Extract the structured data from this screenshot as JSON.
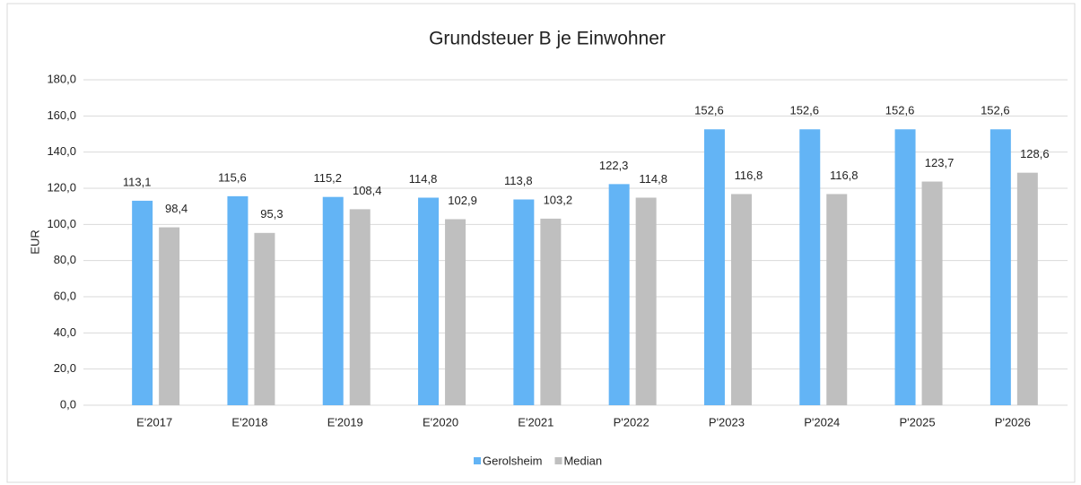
{
  "chart_data": {
    "type": "bar",
    "title": "Grundsteuer B je Einwohner",
    "y_label": "EUR",
    "categories": [
      "E'2017",
      "E'2018",
      "E'2019",
      "E'2020",
      "E'2021",
      "P'2022",
      "P'2023",
      "P'2024",
      "P'2025",
      "P'2026"
    ],
    "series": [
      {
        "name": "Gerolsheim",
        "color": "#63b4f5",
        "values": [
          113.1,
          115.6,
          115.2,
          114.8,
          113.8,
          122.3,
          152.6,
          152.6,
          152.6,
          152.6
        ],
        "value_labels": [
          "113,1",
          "115,6",
          "115,2",
          "114,8",
          "113,8",
          "122,3",
          "152,6",
          "152,6",
          "152,6",
          "152,6"
        ]
      },
      {
        "name": "Median",
        "color": "#bfbfbf",
        "values": [
          98.4,
          95.3,
          108.4,
          102.9,
          103.2,
          114.8,
          116.8,
          116.8,
          123.7,
          128.6
        ],
        "value_labels": [
          "98,4",
          "95,3",
          "108,4",
          "102,9",
          "103,2",
          "114,8",
          "116,8",
          "116,8",
          "123,7",
          "128,6"
        ]
      }
    ],
    "ylim": [
      0,
      180
    ],
    "yticks": [
      {
        "value": 0,
        "label": "0,0"
      },
      {
        "value": 20,
        "label": "20,0"
      },
      {
        "value": 40,
        "label": "40,0"
      },
      {
        "value": 60,
        "label": "60,0"
      },
      {
        "value": 80,
        "label": "80,0"
      },
      {
        "value": 100,
        "label": "100,0"
      },
      {
        "value": 120,
        "label": "120,0"
      },
      {
        "value": 140,
        "label": "140,0"
      },
      {
        "value": 160,
        "label": "160,0"
      },
      {
        "value": 180,
        "label": "180,0"
      }
    ],
    "grid": true,
    "legend": "bottom"
  }
}
